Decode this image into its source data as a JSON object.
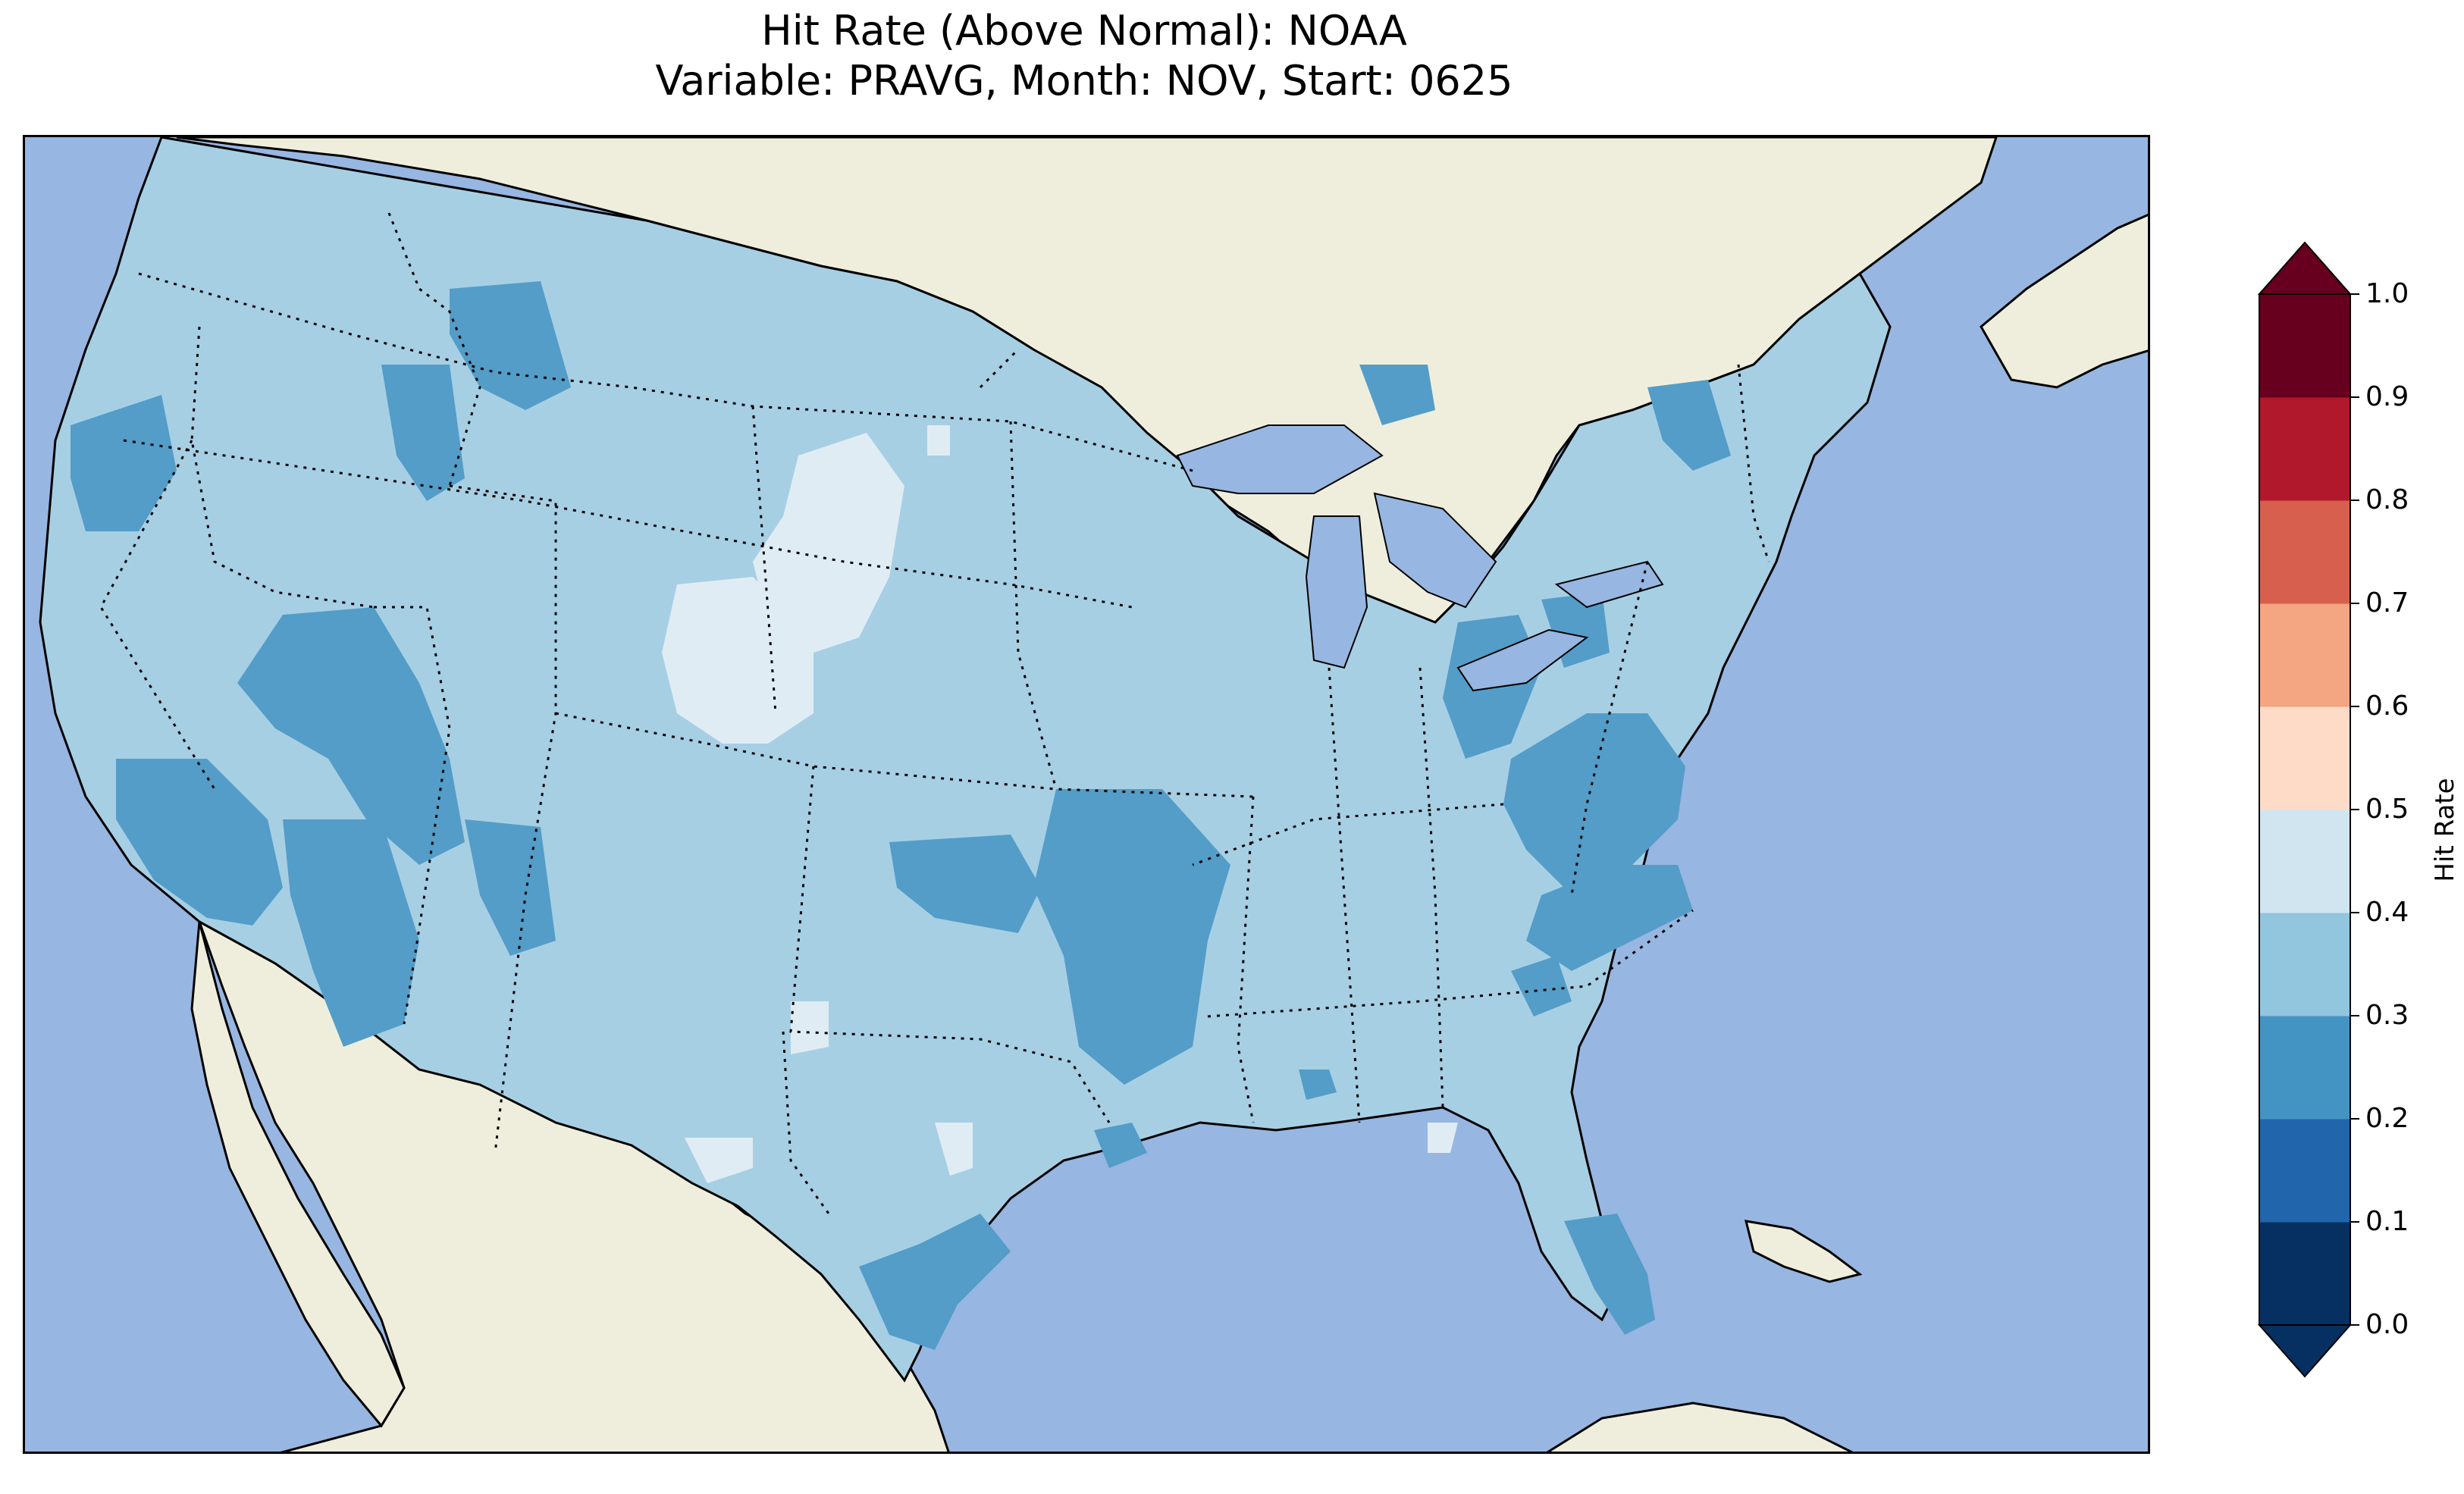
{
  "title": {
    "line1": "Hit Rate (Above Normal): NOAA",
    "line2": "Variable: PRAVG, Month: NOV, Start: 0625"
  },
  "map": {
    "region": "Contiguous United States",
    "background_colors": {
      "ocean": "#97b6e1",
      "land": "#efeedd",
      "lakes": "#97b6e1"
    },
    "boundaries": {
      "coastline": "solid black",
      "state_and_country_borders": "dotted black"
    },
    "field_levels": [
      {
        "range": "0.2-0.3",
        "color": "#539dc8"
      },
      {
        "range": "0.3-0.4",
        "color": "#a7cfe4"
      },
      {
        "range": "0.4-0.5",
        "color": "#e0ecf4"
      }
    ],
    "dominant_level": "0.3-0.4"
  },
  "colorbar": {
    "label": "Hit Rate",
    "ticks": [
      "0.0",
      "0.1",
      "0.2",
      "0.3",
      "0.4",
      "0.5",
      "0.6",
      "0.7",
      "0.8",
      "0.9",
      "1.0"
    ],
    "extend": "both",
    "colors": [
      "#053061",
      "#2166ac",
      "#4393c3",
      "#92c5de",
      "#d1e5f0",
      "#fddbc7",
      "#f4a582",
      "#d6604d",
      "#b2182b",
      "#67001f"
    ],
    "under_color": "#053061",
    "over_color": "#67001f"
  }
}
